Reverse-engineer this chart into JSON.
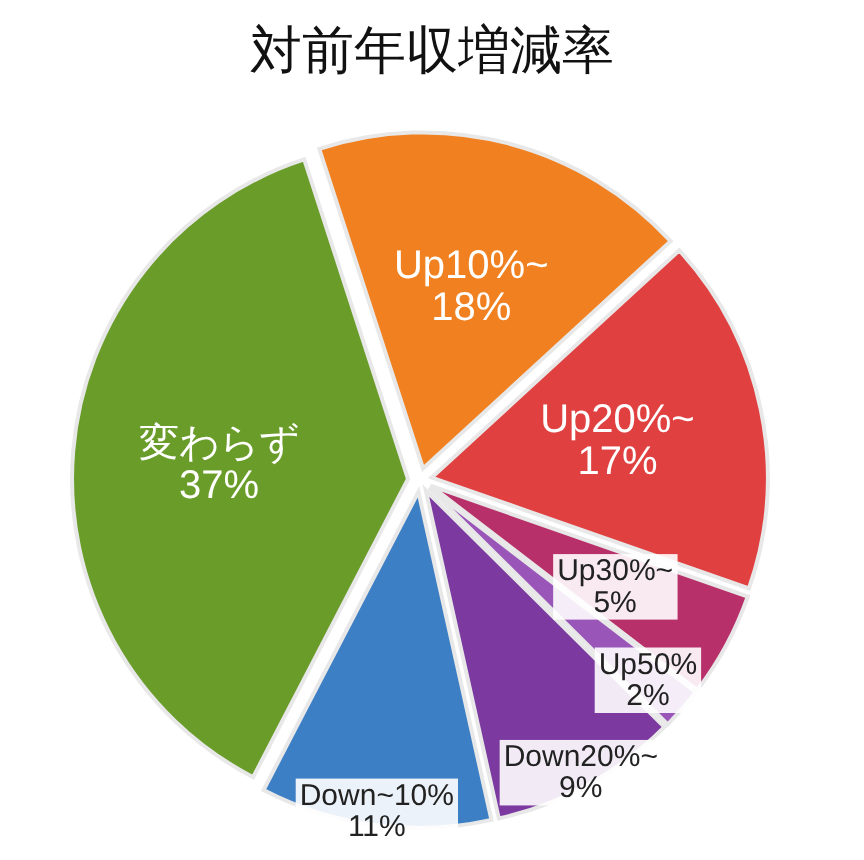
{
  "chart_data": {
    "type": "pie",
    "title": "対前年収増減率",
    "categories": [
      "Up10%~",
      "Up20%~",
      "Up30%~",
      "Up50%",
      "Down20%~",
      "Down~10%",
      "変わらず"
    ],
    "values": [
      18,
      17,
      5,
      2,
      9,
      11,
      37
    ],
    "colors": [
      "#f08020",
      "#e04040",
      "#b8306a",
      "#9a55b8",
      "#7c3aa0",
      "#3d7fc4",
      "#6a9c2a"
    ],
    "value_labels": [
      "18%",
      "17%",
      "5%",
      "2%",
      "9%",
      "11%",
      "37%"
    ]
  }
}
